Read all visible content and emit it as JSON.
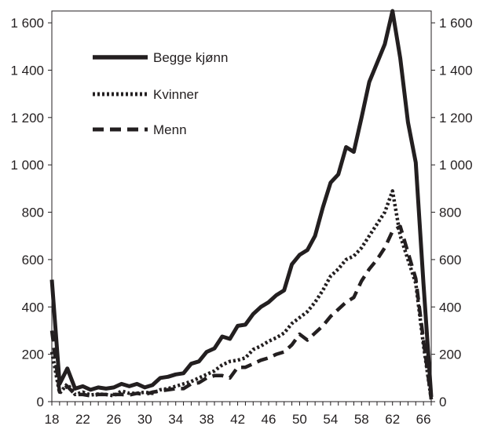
{
  "chart_data": {
    "type": "line",
    "title": "",
    "xlabel": "",
    "ylabel": "",
    "xlim": [
      18,
      67
    ],
    "ylim": [
      0,
      1650
    ],
    "x_ticks": [
      18,
      22,
      26,
      30,
      34,
      38,
      42,
      46,
      50,
      54,
      58,
      62,
      66
    ],
    "y_ticks": [
      0,
      200,
      400,
      600,
      800,
      1000,
      1200,
      1400,
      1600
    ],
    "y_tick_labels": [
      "0",
      "200",
      "400",
      "600",
      "800",
      "1 000",
      "1 200",
      "1 400",
      "1 600"
    ],
    "y_axis_right_mirror": true,
    "grid": false,
    "legend_placement": "top-left",
    "x": [
      18,
      19,
      20,
      21,
      22,
      23,
      24,
      25,
      26,
      27,
      28,
      29,
      30,
      31,
      32,
      33,
      34,
      35,
      36,
      37,
      38,
      39,
      40,
      41,
      42,
      43,
      44,
      45,
      46,
      47,
      48,
      49,
      50,
      51,
      52,
      53,
      54,
      55,
      56,
      57,
      58,
      59,
      60,
      61,
      62,
      63,
      64,
      65,
      66,
      67
    ],
    "series": [
      {
        "name": "Begge kjønn",
        "color": "#231f20",
        "style": "solid",
        "values": [
          515,
          75,
          140,
          55,
          65,
          50,
          60,
          55,
          60,
          75,
          65,
          75,
          60,
          70,
          100,
          105,
          115,
          120,
          160,
          170,
          210,
          225,
          275,
          265,
          320,
          325,
          370,
          400,
          420,
          450,
          470,
          580,
          620,
          640,
          700,
          820,
          925,
          960,
          1075,
          1055,
          1200,
          1350,
          1430,
          1510,
          1650,
          1450,
          1180,
          1010,
          500,
          20
        ]
      },
      {
        "name": "Kvinner",
        "color": "#231f20",
        "style": "dotted",
        "values": [
          210,
          35,
          75,
          30,
          40,
          28,
          32,
          30,
          25,
          45,
          35,
          35,
          40,
          35,
          50,
          55,
          65,
          75,
          85,
          100,
          115,
          130,
          155,
          170,
          175,
          185,
          220,
          235,
          255,
          270,
          290,
          330,
          355,
          380,
          420,
          470,
          530,
          560,
          600,
          615,
          650,
          700,
          750,
          800,
          890,
          700,
          600,
          500,
          240,
          10
        ]
      },
      {
        "name": "Menn",
        "color": "#231f20",
        "style": "dashed",
        "values": [
          300,
          40,
          65,
          30,
          30,
          25,
          30,
          30,
          30,
          30,
          28,
          35,
          30,
          40,
          45,
          50,
          55,
          55,
          75,
          80,
          100,
          110,
          110,
          100,
          145,
          145,
          160,
          175,
          185,
          200,
          210,
          240,
          285,
          260,
          290,
          320,
          360,
          390,
          420,
          440,
          510,
          560,
          600,
          650,
          720,
          740,
          630,
          520,
          260,
          10
        ]
      }
    ]
  }
}
